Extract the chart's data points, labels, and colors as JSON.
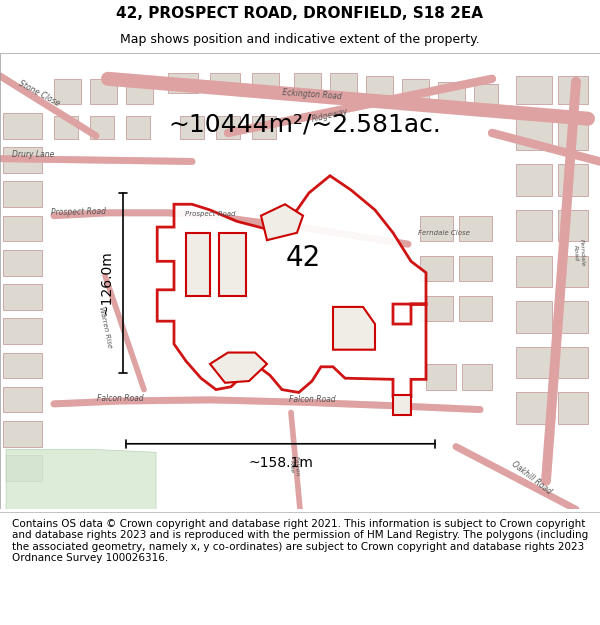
{
  "title": "42, PROSPECT ROAD, DRONFIELD, S18 2EA",
  "subtitle": "Map shows position and indicative extent of the property.",
  "area_text": "~10444m²/~2.581ac.",
  "dim_horizontal": "~158.1m",
  "dim_vertical": "~126.0m",
  "label_42": "42",
  "footer": "Contains OS data © Crown copyright and database right 2021. This information is subject to Crown copyright and database rights 2023 and is reproduced with the permission of HM Land Registry. The polygons (including the associated geometry, namely x, y co-ordinates) are subject to Crown copyright and database rights 2023 Ordnance Survey 100026316.",
  "bg_color": "#f5f0eb",
  "map_bg": "#f0ece6",
  "road_color": "#e8b0b0",
  "road_stroke": "#cc8888",
  "building_fill": "#ddd8d0",
  "building_stroke": "#ccaaaa",
  "highlight_color": "#cc0000",
  "dim_line_color": "#111111",
  "title_fontsize": 11,
  "subtitle_fontsize": 9,
  "area_fontsize": 18,
  "label_fontsize": 20,
  "dim_fontsize": 10,
  "footer_fontsize": 7.5
}
